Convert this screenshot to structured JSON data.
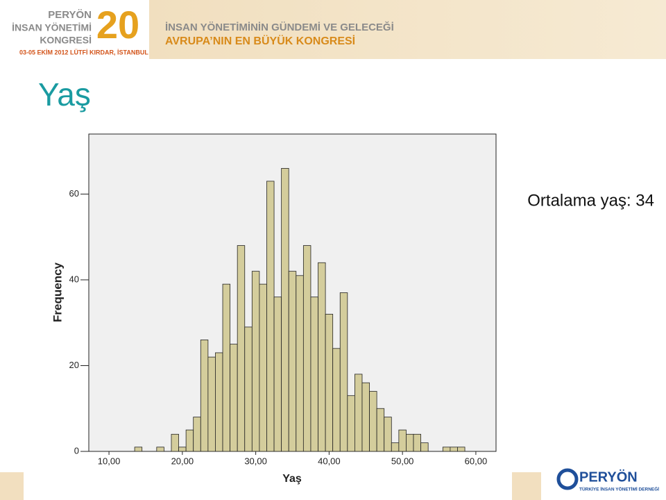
{
  "header": {
    "logo_line1": "PERYÖN",
    "logo_line2": "İNSAN YÖNETİMİ",
    "logo_line3": "KONGRESİ",
    "logo_number": "20",
    "date": "03-05 EKİM 2012 LÜTFİ KIRDAR, İSTANBUL",
    "tagline1": "İNSAN YÖNETİMİNİN GÜNDEMİ VE GELECEĞİ",
    "tagline2": "AVRUPA’NIN EN BÜYÜK KONGRESİ"
  },
  "title": "Yaş",
  "annotation": "Ortalama yaş: 34",
  "footer": {
    "logo": "PERYÖN",
    "logo_sub": "TÜRKİYE İNSAN YÖNETİMİ DERNEĞİ"
  },
  "chart_data": {
    "type": "histogram",
    "x_label": "Yaş",
    "y_label": "Frequency",
    "color": "#d4cd9c",
    "bins": [
      13.5,
      14.5,
      15.5,
      16.5,
      17.5,
      18.5,
      19.5,
      20.5,
      21.5,
      22.5,
      23.5,
      24.5,
      25.5,
      26.5,
      27.5,
      28.5,
      29.5,
      30.5,
      31.5,
      32.5,
      33.5,
      34.5,
      35.5,
      36.5,
      37.5,
      38.5,
      39.5,
      40.5,
      41.5,
      42.5,
      43.5,
      44.5,
      45.5,
      46.5,
      47.5,
      48.5,
      49.5,
      50.5,
      51.5,
      52.5,
      53.5,
      54.5,
      55.5,
      56.5,
      57.5,
      58.5
    ],
    "values": [
      1,
      0,
      0,
      1,
      0,
      4,
      1,
      5,
      8,
      26,
      22,
      23,
      39,
      25,
      48,
      29,
      42,
      39,
      63,
      36,
      66,
      42,
      41,
      48,
      36,
      44,
      32,
      24,
      37,
      13,
      18,
      16,
      14,
      10,
      8,
      2,
      5,
      4,
      4,
      2,
      0,
      0,
      1,
      1,
      1
    ],
    "xlim": [
      7.25,
      62.75
    ],
    "xticks": [
      {
        "value": 10,
        "label": "10,00"
      },
      {
        "value": 20,
        "label": "20,00"
      },
      {
        "value": 30,
        "label": "30,00"
      },
      {
        "value": 40,
        "label": "40,00"
      },
      {
        "value": 50,
        "label": "50,00"
      },
      {
        "value": 60,
        "label": "60,00"
      }
    ],
    "ylim": [
      0,
      74
    ],
    "yticks": [
      0,
      20,
      40,
      60
    ]
  }
}
